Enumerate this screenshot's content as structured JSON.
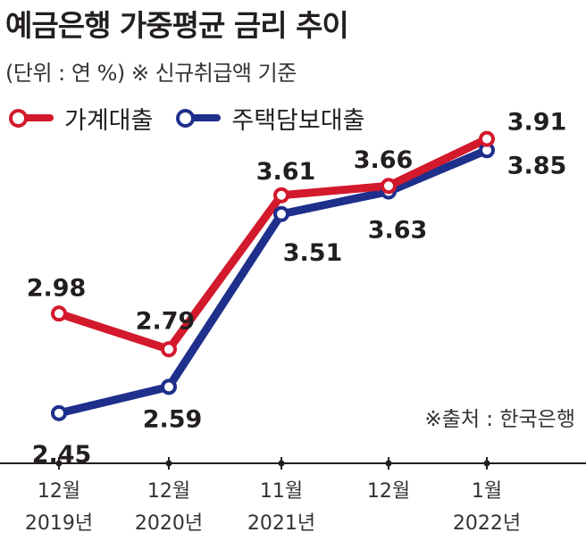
{
  "header": {
    "title": "예금은행 가중평균 금리 추이",
    "subtitle": "(단위 : 연 %)  ※ 신규취급액 기준"
  },
  "footer": {
    "source": "※출처 : 한국은행"
  },
  "colors": {
    "household": "#d3192c",
    "mortgage": "#1e2f8c",
    "axis": "#231f20"
  },
  "chart_data": {
    "type": "line",
    "title": "예금은행 가중평균 금리 추이",
    "subtitle": "(단위 : 연 %)  ※ 신규취급액 기준",
    "categories": [
      [
        "12월",
        "2019년"
      ],
      [
        "12월",
        "2020년"
      ],
      [
        "11월",
        "2021년"
      ],
      [
        "12월",
        ""
      ],
      [
        "1월",
        "2022년"
      ]
    ],
    "series": [
      {
        "name": "가계대출",
        "values": [
          2.98,
          2.79,
          3.61,
          3.66,
          3.91
        ]
      },
      {
        "name": "주택담보대출",
        "values": [
          2.45,
          2.59,
          3.51,
          3.63,
          3.85
        ]
      }
    ],
    "legend": "top-left",
    "grid": false
  }
}
